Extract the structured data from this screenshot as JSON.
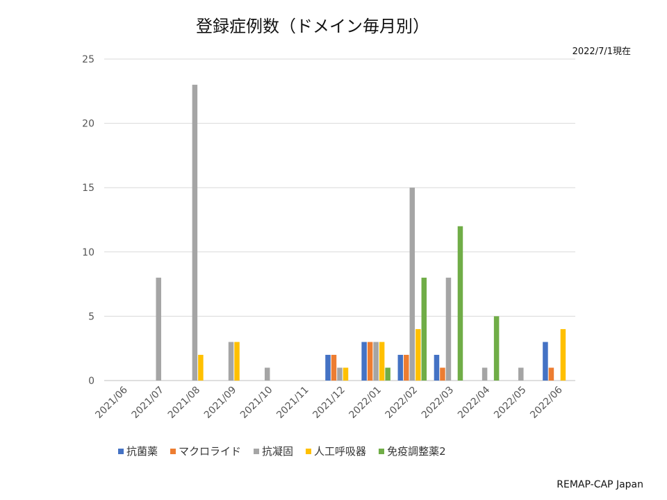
{
  "title": "登録症例数（ドメイン毎月別）",
  "as_of": "2022/7/1現在",
  "credit": "REMAP-CAP Japan",
  "chart_data": {
    "type": "bar",
    "title": "登録症例数（ドメイン毎月別）",
    "categories": [
      "2021/06",
      "2021/07",
      "2021/08",
      "2021/09",
      "2021/10",
      "2021/11",
      "2021/12",
      "2022/01",
      "2022/02",
      "2022/03",
      "2022/04",
      "2022/05",
      "2022/06"
    ],
    "ylim": [
      0,
      25
    ],
    "yticks": [
      0,
      5,
      10,
      15,
      20,
      25
    ],
    "grid": true,
    "legend_position": "bottom",
    "series": [
      {
        "name": "抗菌薬",
        "color": "#4472C4",
        "values": [
          0,
          0,
          0,
          0,
          0,
          0,
          2,
          3,
          2,
          2,
          0,
          0,
          3
        ]
      },
      {
        "name": "マクロライド",
        "color": "#ED7D31",
        "values": [
          0,
          0,
          0,
          0,
          0,
          0,
          2,
          3,
          2,
          1,
          0,
          0,
          1
        ]
      },
      {
        "name": "抗凝固",
        "color": "#A5A5A5",
        "values": [
          0,
          8,
          23,
          3,
          1,
          0,
          1,
          3,
          15,
          8,
          1,
          1,
          0
        ]
      },
      {
        "name": "人工呼吸器",
        "color": "#FFC000",
        "values": [
          0,
          0,
          2,
          3,
          0,
          0,
          1,
          3,
          4,
          0,
          0,
          0,
          4
        ]
      },
      {
        "name": "免疫調整薬2",
        "color": "#70AD47",
        "values": [
          0,
          0,
          0,
          0,
          0,
          0,
          0,
          1,
          8,
          12,
          5,
          0,
          0
        ]
      }
    ]
  }
}
